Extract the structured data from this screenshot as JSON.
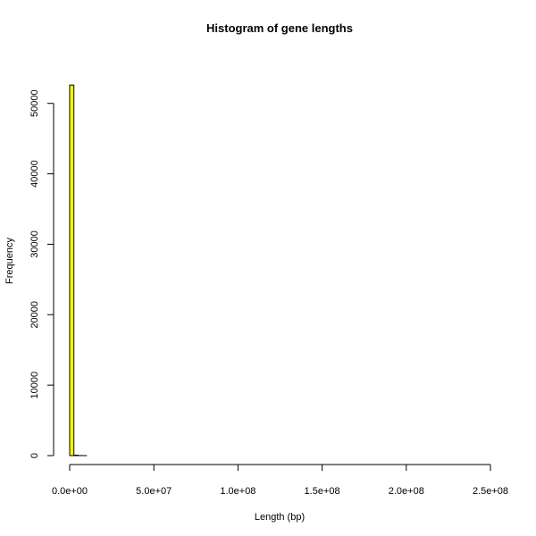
{
  "chart_data": {
    "type": "bar",
    "title": "Histogram of gene lengths",
    "xlabel": "Length (bp)",
    "ylabel": "Frequency",
    "xlim": [
      0,
      250000000
    ],
    "ylim": [
      0,
      52500
    ],
    "bin_width": 2500000,
    "bins": [
      {
        "start": 0,
        "end": 2500000,
        "count": 52600
      },
      {
        "start": 2500000,
        "end": 5000000,
        "count": 60
      },
      {
        "start": 5000000,
        "end": 7500000,
        "count": 8
      },
      {
        "start": 7500000,
        "end": 10000000,
        "count": 2
      }
    ],
    "x_ticks": [
      0,
      50000000,
      100000000,
      150000000,
      200000000,
      250000000
    ],
    "x_tick_labels": [
      "0.0e+00",
      "5.0e+07",
      "1.0e+08",
      "1.5e+08",
      "2.0e+08",
      "2.5e+08"
    ],
    "y_ticks": [
      0,
      10000,
      20000,
      30000,
      40000,
      50000
    ],
    "y_tick_labels": [
      "0",
      "10000",
      "20000",
      "30000",
      "40000",
      "50000"
    ],
    "bar_fill": "#ffff00",
    "bar_stroke": "#000000",
    "grid": false,
    "legend": "none"
  }
}
